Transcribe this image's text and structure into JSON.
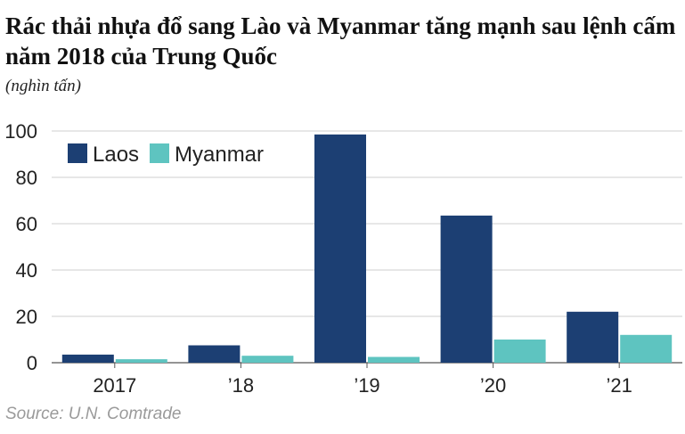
{
  "title": "Rác thải nhựa đổ sang Lào và Myanmar tăng mạnh sau lệnh cấm năm 2018 của Trung Quốc",
  "unit": "(nghìn tấn)",
  "source": "Source: U.N. Comtrade",
  "chart_data": {
    "type": "bar",
    "categories": [
      "2017",
      "’18",
      "’19",
      "’20",
      "’21"
    ],
    "series": [
      {
        "name": "Laos",
        "color": "#1c3f73",
        "values": [
          3.5,
          7.5,
          98.5,
          63.5,
          22
        ]
      },
      {
        "name": "Myanmar",
        "color": "#5ec4c0",
        "values": [
          1.5,
          3,
          2.5,
          10,
          12
        ]
      }
    ],
    "ylim": [
      0,
      100
    ],
    "yticks": [
      0,
      20,
      40,
      60,
      80,
      100
    ],
    "grid": true,
    "legend": "top-left"
  }
}
